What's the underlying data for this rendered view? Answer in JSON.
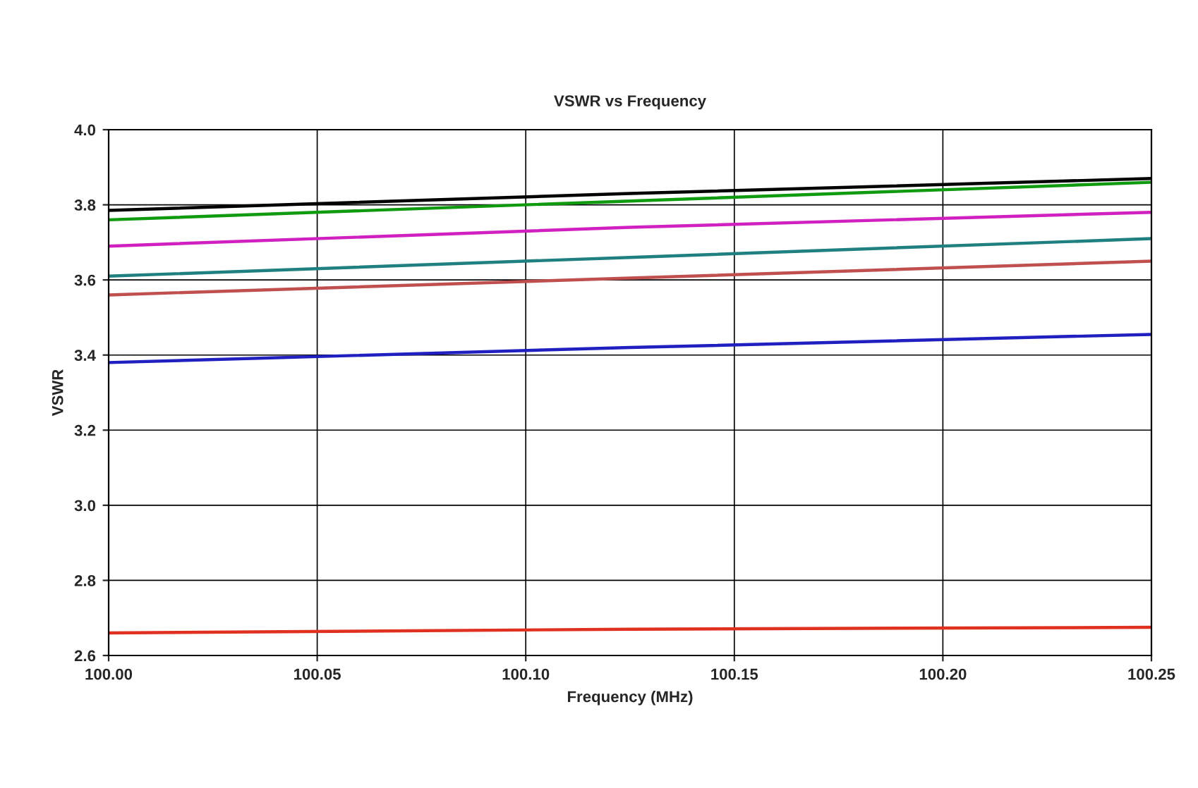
{
  "chart_data": {
    "type": "line",
    "title": "VSWR vs Frequency",
    "xlabel": "Frequency (MHz)",
    "ylabel": "VSWR",
    "x": [
      100.0,
      100.125,
      100.25
    ],
    "series": [
      {
        "color": "#000000",
        "values": [
          3.785,
          3.83,
          3.87
        ]
      },
      {
        "color": "#109a10",
        "values": [
          3.76,
          3.81,
          3.86
        ]
      },
      {
        "color": "#d020c0",
        "values": [
          3.69,
          3.74,
          3.78
        ]
      },
      {
        "color": "#208080",
        "values": [
          3.61,
          3.66,
          3.71
        ]
      },
      {
        "color": "#c05050",
        "values": [
          3.56,
          3.605,
          3.65
        ]
      },
      {
        "color": "#2020c0",
        "values": [
          3.38,
          3.42,
          3.455
        ]
      },
      {
        "color": "#e03020",
        "values": [
          2.66,
          2.67,
          2.675
        ]
      }
    ],
    "xlim": [
      100.0,
      100.25
    ],
    "xticks": [
      {
        "value": 100.0,
        "label": "100.00"
      },
      {
        "value": 100.05,
        "label": "100.05"
      },
      {
        "value": 100.1,
        "label": "100.10"
      },
      {
        "value": 100.15,
        "label": "100.15"
      },
      {
        "value": 100.2,
        "label": "100.20"
      },
      {
        "value": 100.25,
        "label": "100.25"
      }
    ],
    "ylim": [
      2.6,
      4.0
    ],
    "yticks": [
      {
        "value": 2.6,
        "label": "2.6"
      },
      {
        "value": 2.8,
        "label": "2.8"
      },
      {
        "value": 3.0,
        "label": "3.0"
      },
      {
        "value": 3.2,
        "label": "3.2"
      },
      {
        "value": 3.4,
        "label": "3.4"
      },
      {
        "value": 3.6,
        "label": "3.6"
      },
      {
        "value": 3.8,
        "label": "3.8"
      },
      {
        "value": 4.0,
        "label": "4.0"
      }
    ],
    "grid": true,
    "legend": false
  }
}
